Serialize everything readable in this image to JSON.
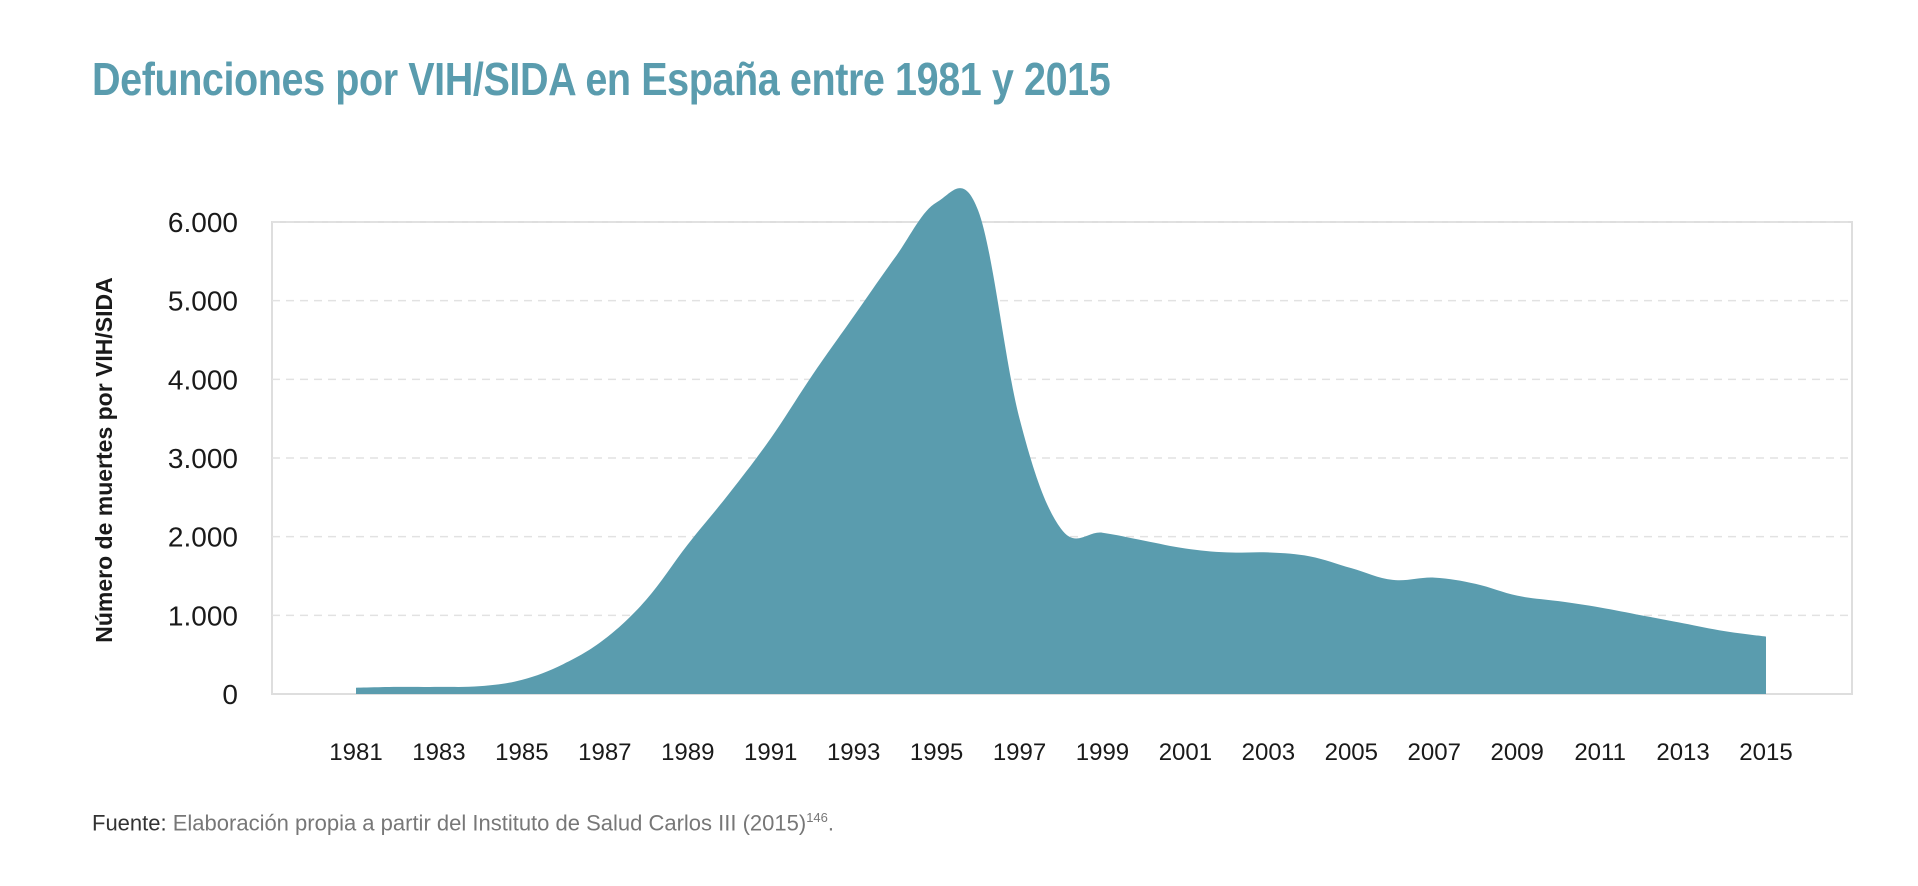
{
  "chart_data": {
    "type": "area",
    "title": "Defunciones por VIH/SIDA en España entre 1981 y 2015",
    "ylabel": "Número de muertes por VIH/SIDA",
    "xlabel": "",
    "ylim": [
      0,
      6000
    ],
    "yticks": [
      "0",
      "1.000",
      "2.000",
      "3.000",
      "4.000",
      "5.000",
      "6.000"
    ],
    "ytick_values": [
      0,
      1000,
      2000,
      3000,
      4000,
      5000,
      6000
    ],
    "xticks": [
      "1981",
      "1983",
      "1985",
      "1987",
      "1989",
      "1991",
      "1993",
      "1995",
      "1997",
      "1999",
      "2001",
      "2003",
      "2005",
      "2007",
      "2009",
      "2011",
      "2013",
      "2015"
    ],
    "grid": true,
    "color": "#5a9cae",
    "x": [
      1981,
      1982,
      1983,
      1984,
      1985,
      1986,
      1987,
      1988,
      1989,
      1990,
      1991,
      1992,
      1993,
      1994,
      1995,
      1996,
      1997,
      1998,
      1999,
      2000,
      2001,
      2002,
      2003,
      2004,
      2005,
      2006,
      2007,
      2008,
      2009,
      2010,
      2011,
      2012,
      2013,
      2014,
      2015
    ],
    "values": [
      80,
      90,
      90,
      100,
      180,
      380,
      700,
      1200,
      1900,
      2550,
      3250,
      4050,
      4800,
      5550,
      6250,
      6150,
      3500,
      2100,
      2050,
      1950,
      1850,
      1800,
      1800,
      1750,
      1600,
      1450,
      1480,
      1400,
      1250,
      1180,
      1100,
      1000,
      900,
      800,
      730
    ]
  },
  "source": {
    "label": "Fuente:",
    "text": "Elaboración propia a partir del Instituto de Salud Carlos III (2015)",
    "ref": "146",
    "end": "."
  }
}
